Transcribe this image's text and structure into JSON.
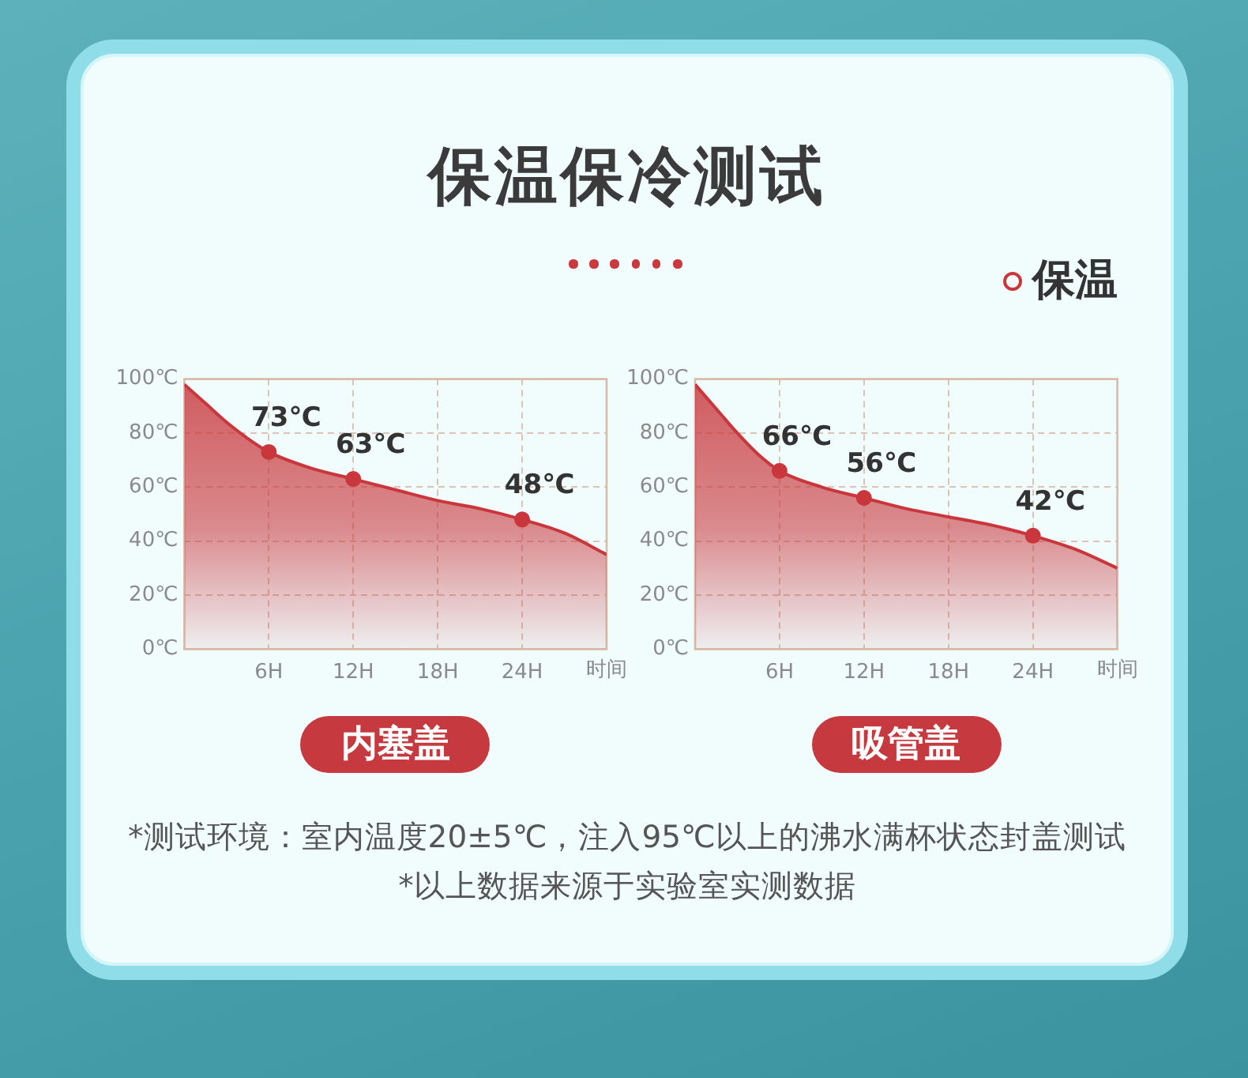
{
  "chart_data": [
    {
      "type": "other",
      "title": "保温保冷测试",
      "annotations": [
        "*测试环境：室内温度20±5℃，注入95℃以上的沸水满杯状态封盖测试",
        "*以上数据来源于实验室实测数据"
      ]
    },
    {
      "type": "area",
      "title": "内塞盖",
      "xlabel": "时间",
      "xlim": [
        0,
        30
      ],
      "xticks": [
        {
          "value": 6,
          "label": "6H"
        },
        {
          "value": 12,
          "label": "12H"
        },
        {
          "value": 18,
          "label": "18H"
        },
        {
          "value": 24,
          "label": "24H"
        }
      ],
      "ylim": [
        0,
        100
      ],
      "yticks": [
        {
          "value": 0,
          "label": "0℃"
        },
        {
          "value": 20,
          "label": "20℃"
        },
        {
          "value": 40,
          "label": "40℃"
        },
        {
          "value": 60,
          "label": "60℃"
        },
        {
          "value": 80,
          "label": "80℃"
        },
        {
          "value": 100,
          "label": "100℃"
        }
      ],
      "grid": true,
      "series": [
        {
          "color": "#c9373c",
          "x": [
            0,
            1.5,
            3,
            4.5,
            6,
            9,
            12,
            15,
            18,
            21,
            24,
            27,
            30
          ],
          "values": [
            98,
            91,
            84,
            78,
            73,
            67,
            63,
            59,
            55,
            52,
            48,
            43,
            35
          ]
        },
        {
          "type": "scatter",
          "color": "#c9373c",
          "marker": "circle",
          "x": [
            6,
            12,
            24
          ],
          "values": [
            73,
            63,
            48
          ],
          "value_labels": [
            "73℃",
            "63℃",
            "48℃"
          ]
        }
      ]
    },
    {
      "type": "area",
      "title": "吸管盖",
      "xlabel": "时间",
      "xlim": [
        0,
        30
      ],
      "xticks": [
        {
          "value": 6,
          "label": "6H"
        },
        {
          "value": 12,
          "label": "12H"
        },
        {
          "value": 18,
          "label": "18H"
        },
        {
          "value": 24,
          "label": "24H"
        }
      ],
      "ylim": [
        0,
        100
      ],
      "yticks": [
        {
          "value": 0,
          "label": "0℃"
        },
        {
          "value": 20,
          "label": "20℃"
        },
        {
          "value": 40,
          "label": "40℃"
        },
        {
          "value": 60,
          "label": "60℃"
        },
        {
          "value": 80,
          "label": "80℃"
        },
        {
          "value": 100,
          "label": "100℃"
        }
      ],
      "grid": true,
      "legend": "top right",
      "series": [
        {
          "name": "保温",
          "color": "#c9373c",
          "x": [
            0,
            1.5,
            3,
            4.5,
            6,
            9,
            12,
            15,
            18,
            21,
            24,
            27,
            30
          ],
          "values": [
            98,
            89,
            80,
            72,
            66,
            60,
            56,
            52,
            49,
            46,
            42,
            37,
            30
          ]
        },
        {
          "type": "scatter",
          "color": "#c9373c",
          "marker": "circle",
          "x": [
            6,
            12,
            24
          ],
          "values": [
            66,
            56,
            42
          ],
          "value_labels": [
            "66℃",
            "56℃",
            "42℃"
          ]
        }
      ]
    }
  ]
}
